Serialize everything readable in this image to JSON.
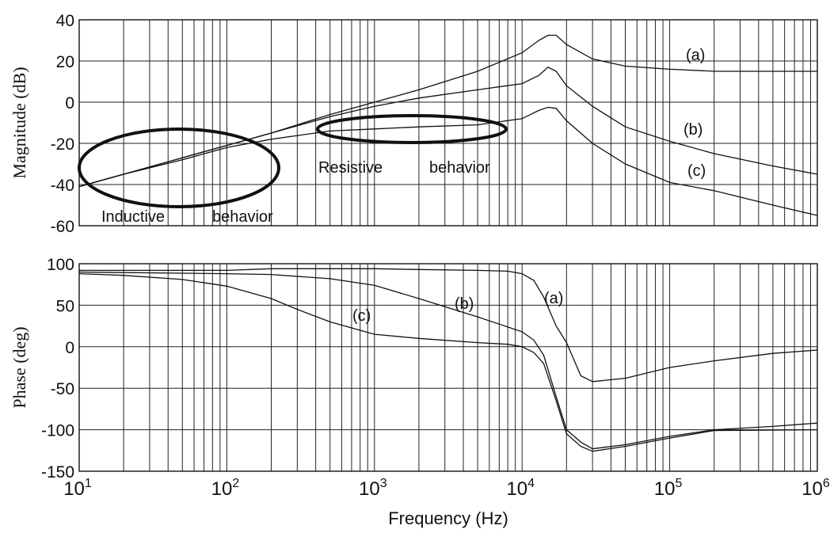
{
  "chart_data": [
    {
      "type": "line",
      "title": "",
      "xlabel": "",
      "ylabel": "Magnitude (dB)",
      "xscale": "log",
      "xlim": [
        10,
        1000000
      ],
      "ylim": [
        -60,
        40
      ],
      "yticks": [
        40,
        20,
        0,
        -20,
        -40,
        -60
      ],
      "grid": true,
      "series": [
        {
          "name": "(a)",
          "x": [
            10,
            20,
            50,
            100,
            200,
            500,
            1000,
            2000,
            5000,
            10000,
            13000,
            15000,
            17000,
            20000,
            30000,
            50000,
            100000,
            200000,
            1000000
          ],
          "y": [
            -41,
            -35,
            -27,
            -21,
            -15,
            -6,
            0,
            6,
            15,
            24,
            30,
            32.5,
            32.5,
            28,
            21,
            17.5,
            16,
            15,
            15
          ]
        },
        {
          "name": "(b)",
          "x": [
            10,
            20,
            50,
            100,
            200,
            500,
            1000,
            2000,
            5000,
            10000,
            13000,
            15000,
            17000,
            20000,
            30000,
            50000,
            100000,
            200000,
            500000,
            1000000
          ],
          "y": [
            -41,
            -35,
            -27,
            -21,
            -15,
            -7,
            -2,
            2,
            6,
            9,
            13,
            17,
            15,
            8,
            -2,
            -12,
            -19,
            -25,
            -31,
            -35
          ]
        },
        {
          "name": "(c)",
          "x": [
            10,
            20,
            50,
            100,
            200,
            500,
            1000,
            2000,
            5000,
            10000,
            13000,
            15000,
            17000,
            20000,
            30000,
            50000,
            100000,
            200000,
            500000,
            1000000
          ],
          "y": [
            -41,
            -35,
            -28,
            -22,
            -18,
            -14,
            -13,
            -12,
            -11,
            -8,
            -4,
            -2.5,
            -3,
            -9,
            -20,
            -30,
            -39,
            -43,
            -50,
            -55
          ]
        }
      ],
      "annotations": [
        {
          "text": "(a)",
          "x": 100000,
          "y": 25
        },
        {
          "text": "(b)",
          "x": 100000,
          "y": -12
        },
        {
          "text": "(c)",
          "x": 100000,
          "y": -32
        },
        {
          "text": "Inductive    behavior",
          "x": 15,
          "y": -55
        },
        {
          "text": "Resistive    behavior",
          "x": 400,
          "y": -31
        }
      ],
      "highlight_ellipses": [
        {
          "label": "Inductive behavior",
          "cx_hz": 50,
          "cy_db": -32,
          "x_range_hz": [
            11,
            220
          ],
          "y_range_db": [
            -51,
            -13
          ]
        },
        {
          "label": "Resistive behavior",
          "cx_hz": 2000,
          "cy_db": -13,
          "x_range_hz": [
            400,
            9000
          ],
          "y_range_db": [
            -19.5,
            -6
          ]
        }
      ]
    },
    {
      "type": "line",
      "title": "",
      "xlabel": "Frequency (Hz)",
      "ylabel": "Phase (deg)",
      "xscale": "log",
      "xlim": [
        10,
        1000000
      ],
      "ylim": [
        -150,
        100
      ],
      "yticks": [
        100,
        50,
        0,
        -50,
        -100,
        -150
      ],
      "xticks": [
        "10^1",
        "10^2",
        "10^3",
        "10^4",
        "10^5",
        "10^6"
      ],
      "grid": true,
      "series": [
        {
          "name": "(a)",
          "x": [
            10,
            100,
            200,
            1000,
            2000,
            5000,
            8000,
            10000,
            12000,
            14000,
            17000,
            20000,
            25000,
            30000,
            50000,
            100000,
            200000,
            500000,
            1000000
          ],
          "y": [
            92,
            92,
            94,
            94,
            93,
            92,
            91,
            88,
            80,
            60,
            25,
            5,
            -35,
            -42,
            -38,
            -25,
            -17,
            -8,
            -4
          ]
        },
        {
          "name": "(b)",
          "x": [
            10,
            100,
            200,
            500,
            1000,
            2000,
            5000,
            10000,
            12000,
            14000,
            17000,
            20000,
            25000,
            30000,
            50000,
            100000,
            200000,
            500000,
            1000000
          ],
          "y": [
            90,
            88,
            87,
            82,
            74,
            58,
            36,
            18,
            8,
            -10,
            -60,
            -100,
            -115,
            -123,
            -118,
            -108,
            -100,
            -96,
            -92
          ]
        },
        {
          "name": "(c)",
          "x": [
            10,
            20,
            50,
            100,
            200,
            300,
            500,
            1000,
            2000,
            5000,
            8000,
            10000,
            12000,
            14000,
            17000,
            20000,
            25000,
            30000,
            50000,
            100000,
            200000,
            1000000
          ],
          "y": [
            88,
            86,
            81,
            73,
            58,
            45,
            30,
            15,
            10,
            5,
            3,
            0,
            -7,
            -20,
            -65,
            -105,
            -120,
            -126,
            -120,
            -110,
            -101,
            -100
          ]
        }
      ],
      "annotations": [
        {
          "text": "(a)",
          "x": 18000,
          "y": 62
        },
        {
          "text": "(b)",
          "x": 4000,
          "y": 55
        },
        {
          "text": "(c)",
          "x": 900,
          "y": 38
        }
      ]
    }
  ],
  "labels": {
    "mag_ylabel": "Magnitude (dB)",
    "phase_ylabel": "Phase (deg)",
    "xlabel": "Frequency (Hz)",
    "inductive_1": "Inductive",
    "inductive_2": "behavior",
    "resistive_1": "Resistive",
    "resistive_2": "behavior",
    "mag_a": "(a)",
    "mag_b": "(b)",
    "mag_c": "(c)",
    "ph_a": "(a)",
    "ph_b": "(b)",
    "ph_c": "(c)"
  }
}
